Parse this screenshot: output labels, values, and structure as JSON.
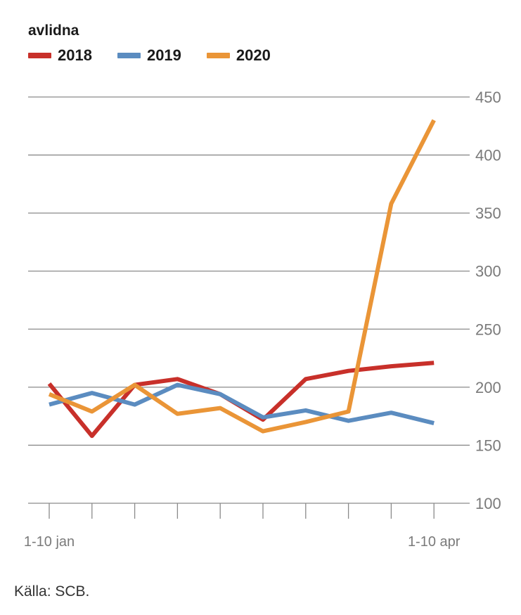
{
  "unit_label": "avlidna",
  "source": "Källa: SCB.",
  "colors": {
    "grid": "#8a8a8a",
    "tick_text": "#7a7a7a"
  },
  "chart_data": {
    "type": "line",
    "x": [
      "1-10 jan",
      "",
      "",
      "",
      "",
      "",
      "",
      "",
      "",
      "1-10 apr"
    ],
    "x_tick_labels": [
      {
        "index": 0,
        "label": "1-10 jan"
      },
      {
        "index": 9,
        "label": "1-10 apr"
      }
    ],
    "ylim": [
      100,
      450
    ],
    "yticks": [
      100,
      150,
      200,
      250,
      300,
      350,
      400,
      450
    ],
    "grid": true,
    "legend": "top-left",
    "series": [
      {
        "name": "2018",
        "color": "#c8302a",
        "values": [
          203,
          158,
          202,
          207,
          194,
          172,
          207,
          214,
          218,
          221
        ]
      },
      {
        "name": "2019",
        "color": "#5b8cc0",
        "values": [
          185,
          195,
          185,
          202,
          194,
          174,
          180,
          171,
          178,
          169
        ]
      },
      {
        "name": "2020",
        "color": "#ea9537",
        "values": [
          194,
          179,
          202,
          177,
          182,
          162,
          170,
          179,
          358,
          430
        ]
      }
    ]
  }
}
